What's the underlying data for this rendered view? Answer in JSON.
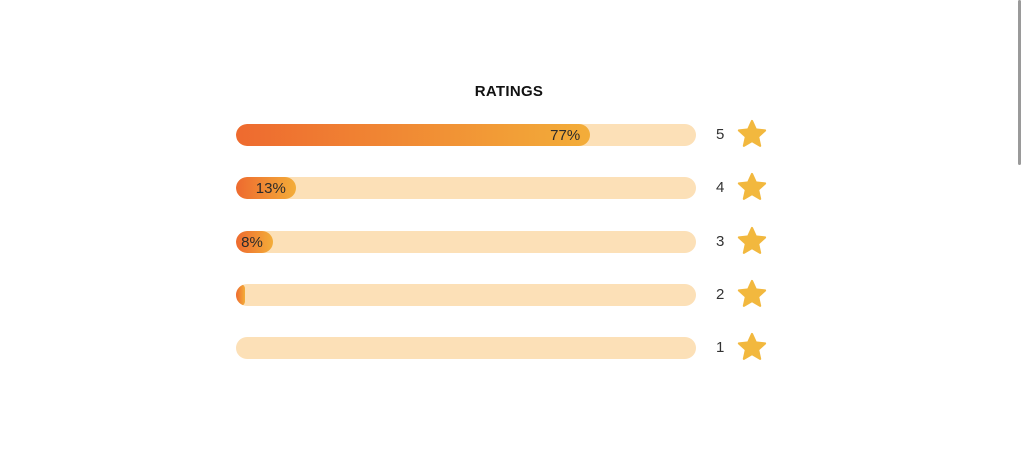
{
  "ratings": {
    "title": "RATINGS",
    "star_color": "#f2b83e",
    "bar_gradient": [
      "#ee6a2f",
      "#f3ad39"
    ],
    "track_color": "#fce0b7",
    "rows": [
      {
        "stars": "5",
        "percent": 77,
        "label": "77%"
      },
      {
        "stars": "4",
        "percent": 13,
        "label": "13%"
      },
      {
        "stars": "3",
        "percent": 8,
        "label": "8%"
      },
      {
        "stars": "2",
        "percent": 2,
        "label": ""
      },
      {
        "stars": "1",
        "percent": 0,
        "label": ""
      }
    ]
  }
}
